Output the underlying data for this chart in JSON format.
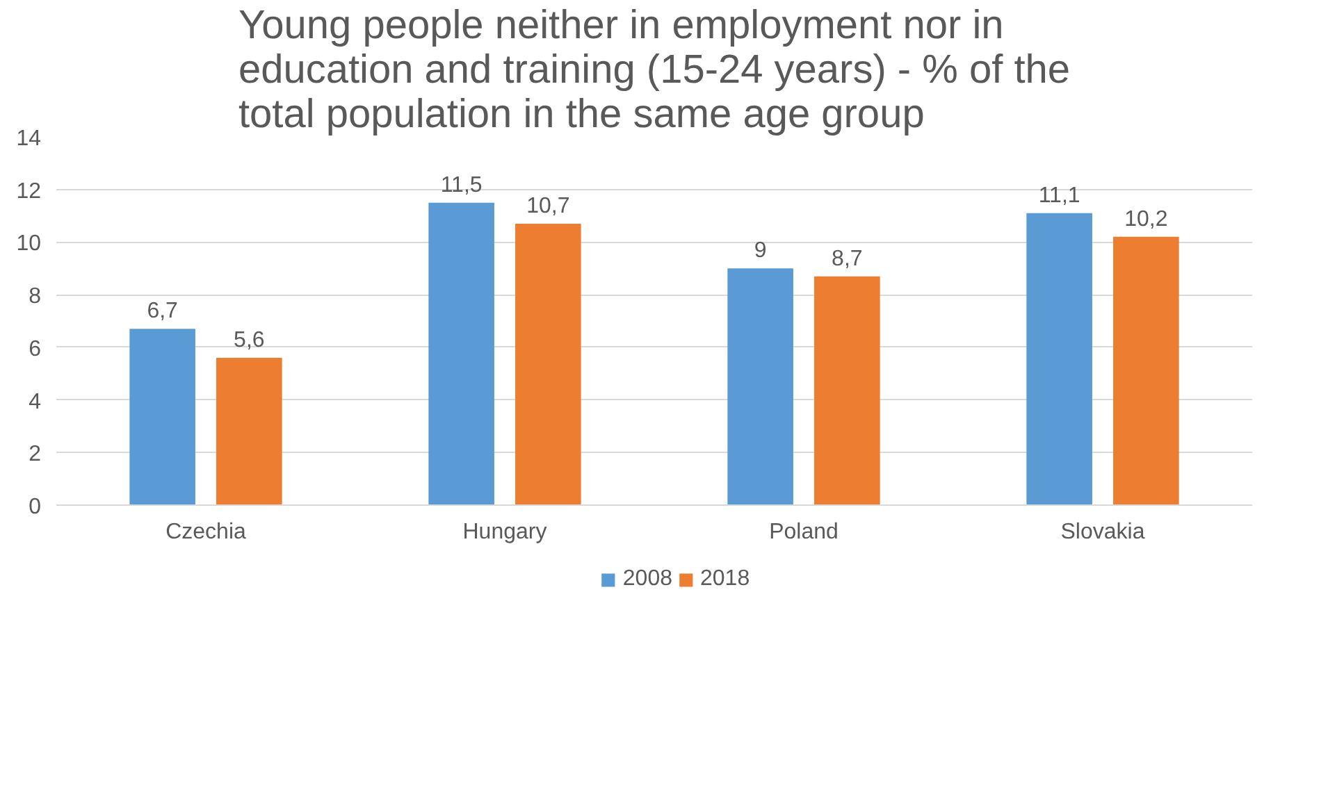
{
  "chart_data": {
    "type": "bar",
    "title": "Young people neither in employment nor in education and training (15-24 years) - % of the total population in the same age group",
    "categories": [
      "Czechia",
      "Hungary",
      "Poland",
      "Slovakia"
    ],
    "series": [
      {
        "name": "2008",
        "color": "#5b9bd5",
        "values": [
          6.7,
          11.5,
          9,
          11.1
        ],
        "value_labels": [
          "6,7",
          "11,5",
          "9",
          "11,1"
        ]
      },
      {
        "name": "2018",
        "color": "#ed7d31",
        "values": [
          5.6,
          10.7,
          8.7,
          10.2
        ],
        "value_labels": [
          "5,6",
          "10,7",
          "8,7",
          "10,2"
        ]
      }
    ],
    "ylim": [
      0,
      14
    ],
    "yticks": [
      0,
      2,
      4,
      6,
      8,
      10,
      12,
      14
    ],
    "grid": "y",
    "legend": "bottom"
  }
}
